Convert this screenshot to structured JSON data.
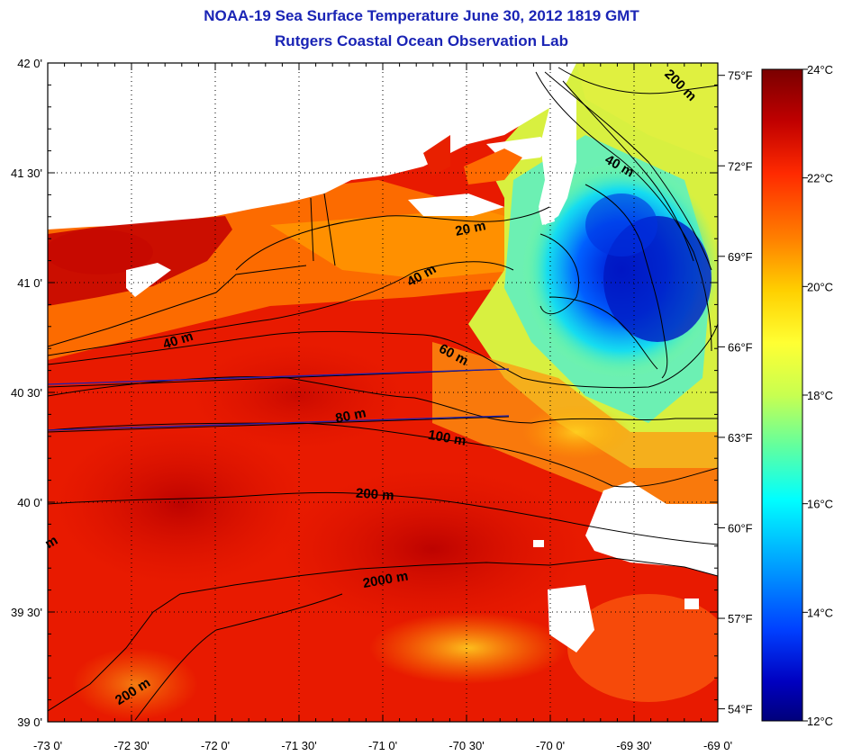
{
  "title": "NOAA-19 Sea Surface Temperature June 30, 2012 1819 GMT",
  "subtitle": "Rutgers Coastal Ocean Observation Lab",
  "lon_ticks": [
    {
      "label": "-73 0'",
      "value": -73.0
    },
    {
      "label": "-72 30'",
      "value": -72.5
    },
    {
      "label": "-72 0'",
      "value": -72.0
    },
    {
      "label": "-71 30'",
      "value": -71.5
    },
    {
      "label": "-71 0'",
      "value": -71.0
    },
    {
      "label": "-70 30'",
      "value": -70.5
    },
    {
      "label": "-70 0'",
      "value": -70.0
    },
    {
      "label": "-69 30'",
      "value": -69.5
    },
    {
      "label": "-69 0'",
      "value": -69.0
    }
  ],
  "lat_ticks": [
    {
      "label": "42 0'",
      "value": 42.0
    },
    {
      "label": "41 30'",
      "value": 41.5
    },
    {
      "label": "41 0'",
      "value": 41.0
    },
    {
      "label": "40 30'",
      "value": 40.5
    },
    {
      "label": "40 0'",
      "value": 40.0
    },
    {
      "label": "39 30'",
      "value": 39.5
    },
    {
      "label": "39 0'",
      "value": 39.0
    }
  ],
  "colorbar": {
    "c_min": 12,
    "c_max": 24,
    "c_labels": [
      "24°C",
      "22°C",
      "20°C",
      "18°C",
      "16°C",
      "14°C",
      "12°C"
    ],
    "c_values": [
      24,
      22,
      20,
      18,
      16,
      14,
      12
    ],
    "f_labels": [
      "75°F",
      "72°F",
      "69°F",
      "66°F",
      "63°F",
      "60°F",
      "57°F",
      "54°F"
    ],
    "f_values": [
      75,
      72,
      69,
      66,
      63,
      60,
      57,
      54
    ],
    "colors": [
      "#7a0000",
      "#c00000",
      "#ff2a00",
      "#ff8000",
      "#ffd000",
      "#ffff33",
      "#c8ff50",
      "#60ffa0",
      "#00ffff",
      "#00a0ff",
      "#0040ff",
      "#0000c0",
      "#00007a"
    ]
  },
  "contour_labels": [
    "20 m",
    "40 m",
    "40 m",
    "40 m",
    "60 m",
    "80 m",
    "100 m",
    "200 m",
    "200 m",
    "200 m",
    "2000 m",
    "m"
  ]
}
